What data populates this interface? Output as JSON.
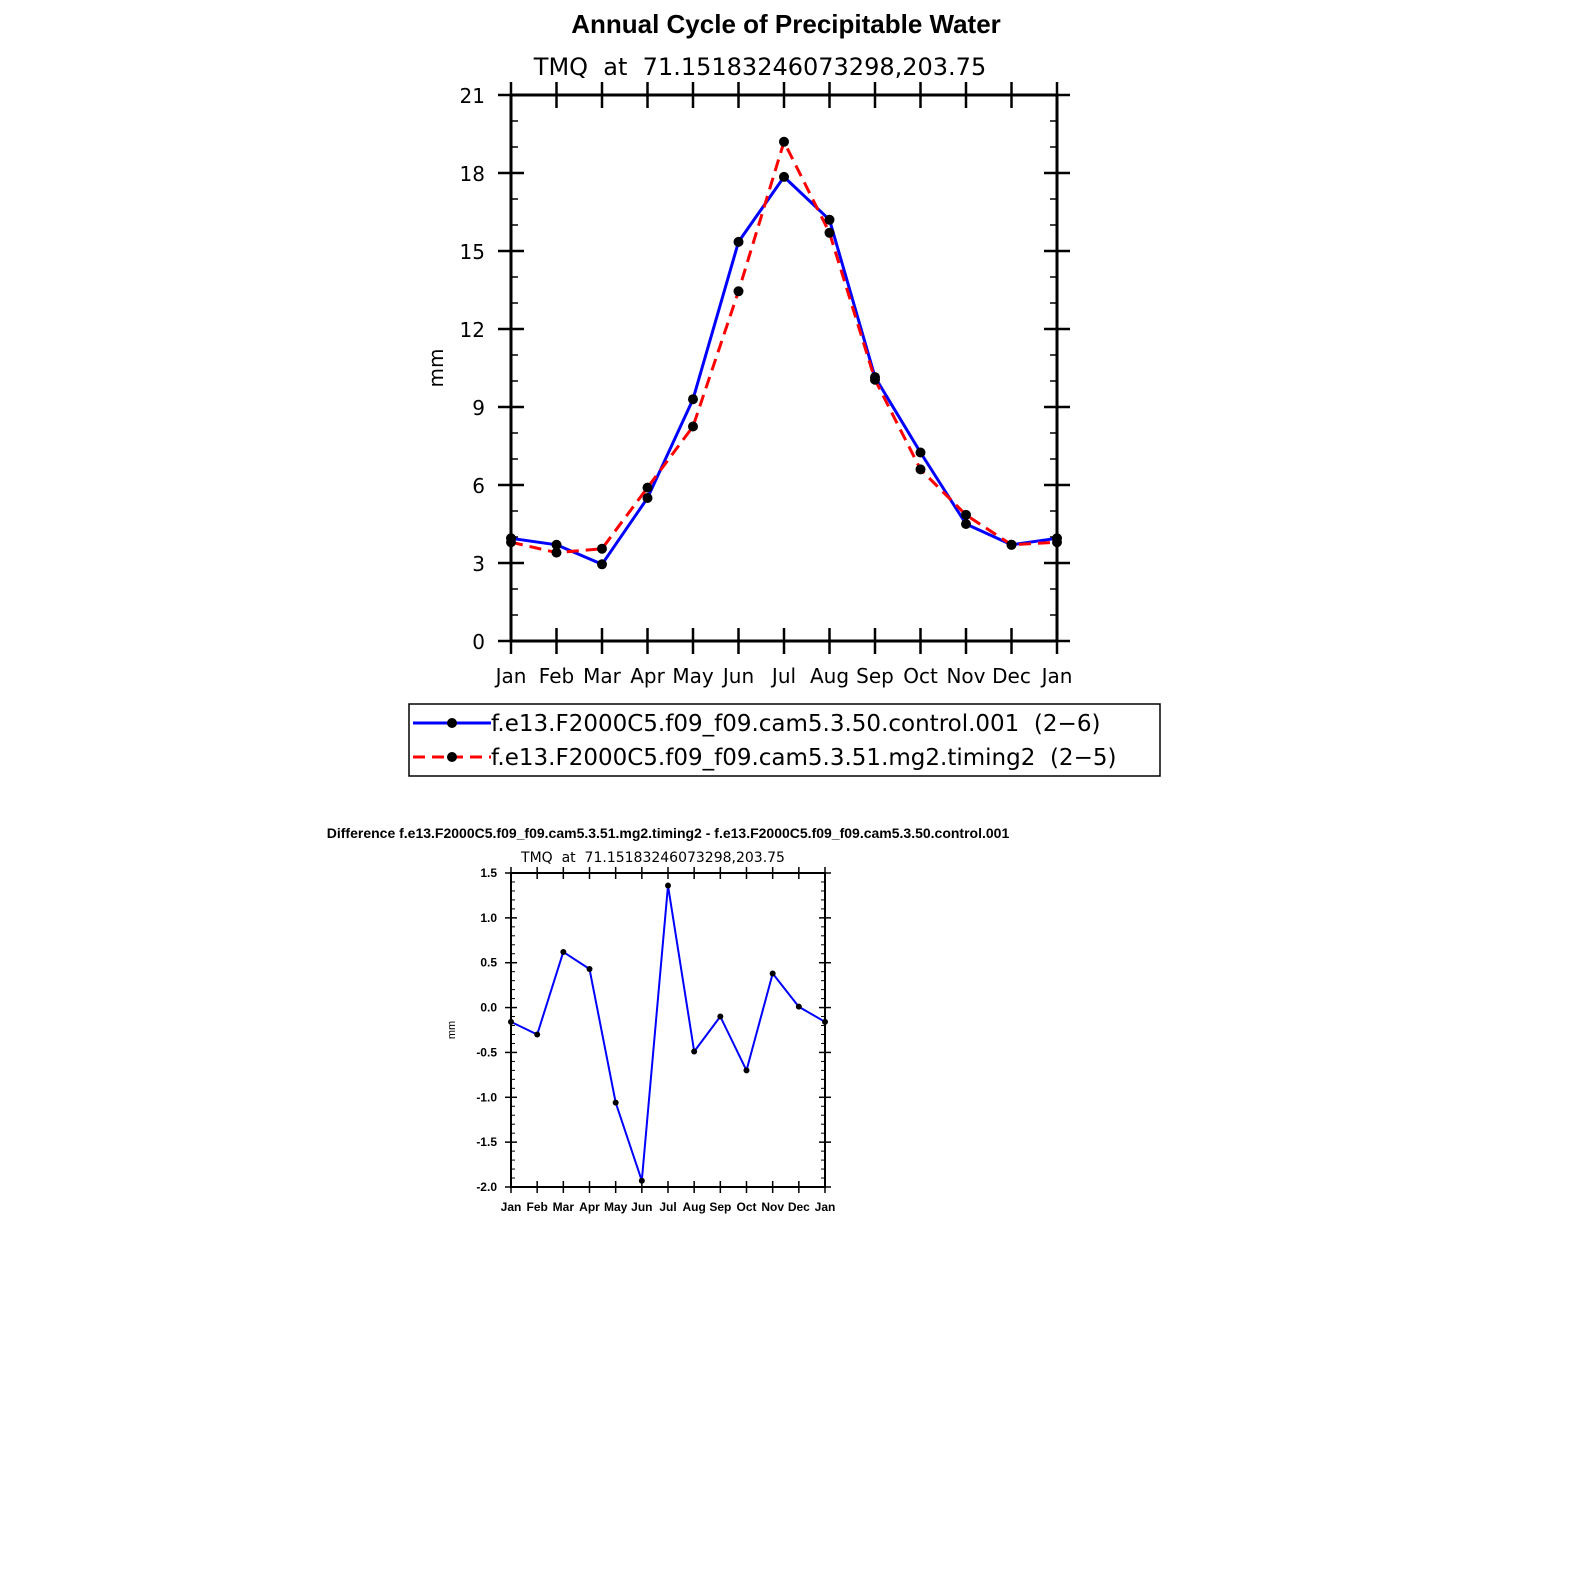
{
  "chart_data": [
    {
      "type": "line",
      "title": "Annual Cycle of Precipitable Water",
      "subtitle": "TMQ  at  71.15183246073298,203.75",
      "xlabel": "",
      "ylabel": "mm",
      "categories": [
        "Jan",
        "Feb",
        "Mar",
        "Apr",
        "May",
        "Jun",
        "Jul",
        "Aug",
        "Sep",
        "Oct",
        "Nov",
        "Dec",
        "Jan"
      ],
      "ylim": [
        0,
        21
      ],
      "yticks": [
        0,
        3,
        6,
        9,
        12,
        15,
        18,
        21
      ],
      "series": [
        {
          "name": "f.e13.F2000C5.f09_f09.cam5.3.50.control.001  (2−6)",
          "color": "#0000ff",
          "dash": "solid",
          "values": [
            3.95,
            3.7,
            2.95,
            5.5,
            9.3,
            15.35,
            17.85,
            16.2,
            10.15,
            7.25,
            4.5,
            3.7,
            3.95
          ]
        },
        {
          "name": "f.e13.F2000C5.f09_f09.cam5.3.51.mg2.timing2  (2−5)",
          "color": "#ff0000",
          "dash": "dashed",
          "values": [
            3.8,
            3.4,
            3.55,
            5.9,
            8.25,
            13.45,
            19.2,
            15.7,
            10.05,
            6.6,
            4.85,
            3.7,
            3.8
          ]
        }
      ],
      "legend": "bottom"
    },
    {
      "type": "line",
      "title": "Difference f.e13.F2000C5.f09_f09.cam5.3.51.mg2.timing2 - f.e13.F2000C5.f09_f09.cam5.3.50.control.001",
      "subtitle": "TMQ  at  71.15183246073298,203.75",
      "xlabel": "",
      "ylabel": "mm",
      "categories": [
        "Jan",
        "Feb",
        "Mar",
        "Apr",
        "May",
        "Jun",
        "Jul",
        "Aug",
        "Sep",
        "Oct",
        "Nov",
        "Dec",
        "Jan"
      ],
      "ylim": [
        -2.0,
        1.5
      ],
      "yticks": [
        "-2.0",
        "-1.5",
        "-1.0",
        "-0.5",
        "0.0",
        "0.5",
        "1.0",
        "1.5"
      ],
      "series": [
        {
          "color": "#0000ff",
          "dash": "solid",
          "values": [
            -0.16,
            -0.3,
            0.62,
            0.43,
            -1.06,
            -1.93,
            1.36,
            -0.49,
            -0.1,
            -0.7,
            0.38,
            0.01,
            -0.16
          ]
        }
      ]
    }
  ]
}
